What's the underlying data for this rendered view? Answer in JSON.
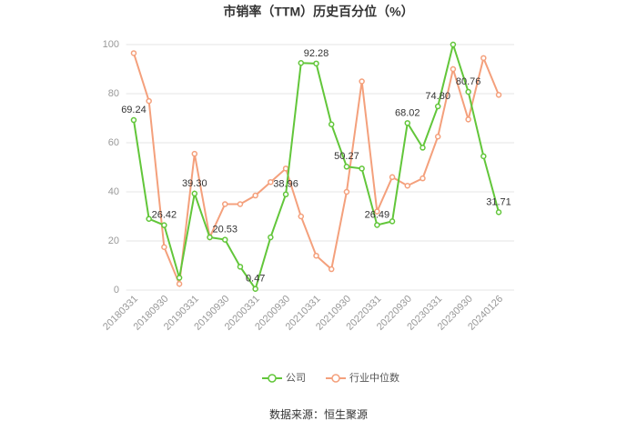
{
  "chart_data": {
    "type": "line",
    "title": "市销率（TTM）历史百分位（%）",
    "source": "数据来源：恒生聚源",
    "categories": [
      "20180331",
      null,
      "20180930",
      null,
      "20190331",
      null,
      "20190930",
      null,
      "20200331",
      null,
      "20200930",
      null,
      "20210331",
      null,
      "20210930",
      null,
      "20220331",
      null,
      "20220930",
      null,
      "20230331",
      null,
      "20230930",
      null,
      "20240126"
    ],
    "series": [
      {
        "name": "公司",
        "color": "#62c63a",
        "values": [
          69.24,
          29,
          26.42,
          5,
          39.3,
          21.5,
          20.53,
          9.5,
          0.47,
          21.5,
          38.96,
          92.5,
          92.28,
          67.5,
          50.27,
          49.5,
          26.49,
          28,
          68.02,
          58,
          74.8,
          100,
          80.76,
          54.5,
          31.71
        ],
        "value_labels": [
          "69.24",
          null,
          "26.42",
          null,
          "39.30",
          null,
          "20.53",
          null,
          "0.47",
          null,
          "38.96",
          null,
          "92.28",
          null,
          "50.27",
          null,
          "26.49",
          null,
          "68.02",
          null,
          "74.80",
          null,
          "80.76",
          null,
          "31.71"
        ]
      },
      {
        "name": "行业中位数",
        "color": "#f4a07c",
        "values": [
          96.5,
          77,
          17.5,
          2.5,
          55.5,
          21.5,
          35,
          35,
          38.5,
          44,
          49.5,
          30,
          14,
          8.5,
          40,
          85,
          32,
          46,
          42.5,
          45.5,
          62.5,
          90,
          69.5,
          94.5,
          79.5
        ]
      }
    ],
    "ylim": [
      0,
      100
    ],
    "yticks": [
      0,
      20,
      40,
      60,
      80,
      100
    ],
    "grid": true
  }
}
